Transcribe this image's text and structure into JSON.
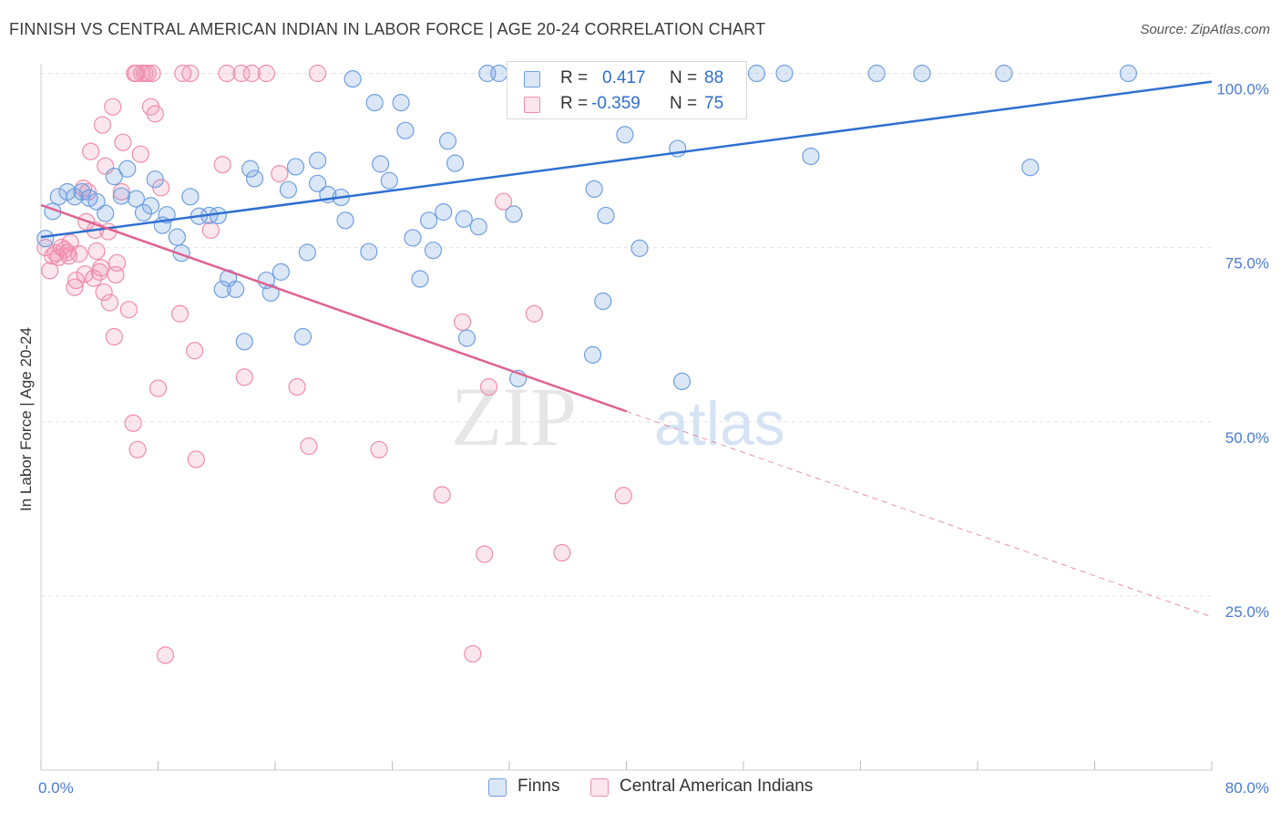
{
  "title": "FINNISH VS CENTRAL AMERICAN INDIAN IN LABOR FORCE | AGE 20-24 CORRELATION CHART",
  "source": "Source: ZipAtlas.com",
  "watermark": {
    "part1": "ZIP",
    "part2": "atlas"
  },
  "colors": {
    "finns": "#6f9fe0",
    "finns_fill": "rgba(111,159,224,0.25)",
    "finns_line": "#2f6fd0",
    "cai": "#f08cab",
    "cai_fill": "rgba(240,140,171,0.22)",
    "cai_line": "#e0628f",
    "grid": "#e3e3e3",
    "axis_text": "#4a7bd1"
  },
  "legend": {
    "finns": {
      "r_label": "R =",
      "r_value": "0.417",
      "n_label": "N =",
      "n_value": "88"
    },
    "cai": {
      "r_label": "R =",
      "r_value": "-0.359",
      "n_label": "N =",
      "n_value": "75"
    }
  },
  "chart_data": {
    "type": "scatter",
    "title": "FINNISH VS CENTRAL AMERICAN INDIAN IN LABOR FORCE | AGE 20-24 CORRELATION CHART",
    "xlabel": "",
    "ylabel": "In Labor Force | Age 20-24",
    "xlim": [
      0,
      80
    ],
    "ylim": [
      0,
      105
    ],
    "x_tick_labels": [
      "0.0%",
      "80.0%"
    ],
    "y_ticks": [
      25,
      50,
      75,
      100
    ],
    "y_tick_labels": [
      "25.0%",
      "50.0%",
      "75.0%",
      "100.0%"
    ],
    "grid": true,
    "legend_position": "bottom",
    "series": [
      {
        "name": "Finns",
        "trend": {
          "x0": 0,
          "y0": 76.5,
          "x1": 80,
          "y1": 98.8
        },
        "points": [
          [
            0.3,
            76.3
          ],
          [
            0.8,
            80.2
          ],
          [
            1.2,
            82.3
          ],
          [
            1.8,
            83.0
          ],
          [
            2.3,
            82.3
          ],
          [
            2.8,
            83.0
          ],
          [
            3.3,
            82.1
          ],
          [
            3.8,
            81.6
          ],
          [
            4.4,
            79.9
          ],
          [
            5.0,
            85.2
          ],
          [
            5.5,
            82.4
          ],
          [
            5.9,
            86.3
          ],
          [
            6.5,
            82.0
          ],
          [
            7.0,
            80.0
          ],
          [
            7.5,
            81.0
          ],
          [
            7.8,
            84.8
          ],
          [
            8.3,
            78.2
          ],
          [
            8.6,
            79.7
          ],
          [
            9.3,
            76.5
          ],
          [
            9.6,
            74.2
          ],
          [
            10.2,
            82.3
          ],
          [
            10.8,
            79.5
          ],
          [
            11.5,
            79.6
          ],
          [
            12.1,
            79.6
          ],
          [
            12.4,
            69.0
          ],
          [
            12.8,
            70.6
          ],
          [
            13.3,
            69.0
          ],
          [
            13.9,
            61.5
          ],
          [
            14.3,
            86.3
          ],
          [
            14.6,
            84.9
          ],
          [
            15.4,
            70.3
          ],
          [
            15.7,
            68.5
          ],
          [
            16.4,
            71.5
          ],
          [
            16.9,
            83.3
          ],
          [
            17.4,
            86.6
          ],
          [
            17.9,
            62.2
          ],
          [
            18.2,
            74.3
          ],
          [
            18.9,
            87.5
          ],
          [
            18.9,
            84.2
          ],
          [
            19.6,
            82.6
          ],
          [
            20.5,
            82.2
          ],
          [
            20.8,
            78.9
          ],
          [
            21.3,
            99.2
          ],
          [
            22.4,
            74.4
          ],
          [
            22.8,
            95.8
          ],
          [
            23.2,
            87.0
          ],
          [
            23.8,
            84.6
          ],
          [
            24.6,
            95.8
          ],
          [
            24.9,
            91.8
          ],
          [
            25.4,
            76.4
          ],
          [
            25.9,
            70.5
          ],
          [
            26.5,
            78.9
          ],
          [
            26.8,
            74.6
          ],
          [
            27.5,
            80.1
          ],
          [
            27.8,
            90.3
          ],
          [
            28.3,
            87.1
          ],
          [
            28.9,
            79.1
          ],
          [
            29.1,
            62.0
          ],
          [
            29.9,
            78.0
          ],
          [
            30.5,
            100
          ],
          [
            31.3,
            100
          ],
          [
            32.3,
            79.8
          ],
          [
            32.6,
            56.2
          ],
          [
            33.5,
            100
          ],
          [
            34.9,
            100
          ],
          [
            35.6,
            100
          ],
          [
            37.5,
            100
          ],
          [
            37.7,
            59.6
          ],
          [
            37.8,
            83.4
          ],
          [
            38.4,
            67.3
          ],
          [
            38.6,
            79.6
          ],
          [
            39.5,
            100
          ],
          [
            39.9,
            91.2
          ],
          [
            40.5,
            100
          ],
          [
            40.9,
            74.9
          ],
          [
            41.9,
            100
          ],
          [
            43.5,
            89.2
          ],
          [
            43.8,
            55.8
          ],
          [
            44.5,
            100
          ],
          [
            48.9,
            100
          ],
          [
            50.8,
            100
          ],
          [
            52.6,
            88.1
          ],
          [
            57.1,
            100
          ],
          [
            60.2,
            100
          ],
          [
            65.8,
            100
          ],
          [
            67.6,
            86.5
          ],
          [
            74.3,
            100
          ]
        ]
      },
      {
        "name": "Central American Indians",
        "trend": {
          "x0": 0,
          "y0": 81.1,
          "x1": 40,
          "y1": 51.5,
          "dash_x1": 80,
          "dash_y1": 22.0
        },
        "points": [
          [
            0.3,
            75.0
          ],
          [
            0.6,
            71.7
          ],
          [
            0.8,
            73.8
          ],
          [
            1.0,
            74.2
          ],
          [
            1.2,
            73.6
          ],
          [
            1.4,
            75.0
          ],
          [
            1.6,
            74.7
          ],
          [
            1.8,
            74.3
          ],
          [
            1.9,
            73.8
          ],
          [
            2.0,
            75.7
          ],
          [
            2.3,
            69.3
          ],
          [
            2.4,
            70.3
          ],
          [
            2.6,
            74.1
          ],
          [
            2.9,
            83.5
          ],
          [
            3.0,
            71.2
          ],
          [
            3.1,
            78.7
          ],
          [
            3.2,
            83.0
          ],
          [
            3.4,
            88.8
          ],
          [
            3.6,
            70.6
          ],
          [
            3.7,
            77.5
          ],
          [
            3.8,
            74.5
          ],
          [
            4.0,
            71.5
          ],
          [
            4.1,
            72.1
          ],
          [
            4.2,
            92.6
          ],
          [
            4.3,
            68.6
          ],
          [
            4.4,
            86.7
          ],
          [
            4.6,
            77.3
          ],
          [
            4.7,
            67.1
          ],
          [
            4.9,
            95.2
          ],
          [
            5.0,
            62.2
          ],
          [
            5.1,
            71.1
          ],
          [
            5.2,
            72.8
          ],
          [
            5.5,
            83.0
          ],
          [
            5.6,
            90.1
          ],
          [
            6.0,
            66.1
          ],
          [
            6.3,
            49.8
          ],
          [
            6.4,
            100
          ],
          [
            6.5,
            100
          ],
          [
            6.6,
            46.0
          ],
          [
            6.8,
            88.4
          ],
          [
            6.9,
            100
          ],
          [
            7.1,
            100
          ],
          [
            7.3,
            100
          ],
          [
            7.5,
            95.2
          ],
          [
            7.6,
            100
          ],
          [
            7.8,
            94.2
          ],
          [
            8.0,
            54.8
          ],
          [
            8.2,
            83.6
          ],
          [
            8.5,
            16.5
          ],
          [
            9.5,
            65.5
          ],
          [
            9.7,
            100
          ],
          [
            10.2,
            100
          ],
          [
            10.5,
            60.2
          ],
          [
            10.6,
            44.6
          ],
          [
            11.6,
            77.5
          ],
          [
            12.4,
            86.9
          ],
          [
            12.7,
            100
          ],
          [
            13.7,
            100
          ],
          [
            13.9,
            56.4
          ],
          [
            14.4,
            100
          ],
          [
            15.4,
            100
          ],
          [
            16.3,
            85.6
          ],
          [
            17.5,
            55.0
          ],
          [
            18.3,
            46.5
          ],
          [
            18.9,
            100
          ],
          [
            23.1,
            46.0
          ],
          [
            27.4,
            39.5
          ],
          [
            28.8,
            64.3
          ],
          [
            29.5,
            16.7
          ],
          [
            30.3,
            31.0
          ],
          [
            30.6,
            55.0
          ],
          [
            31.6,
            81.6
          ],
          [
            33.7,
            65.5
          ],
          [
            35.6,
            31.2
          ],
          [
            39.8,
            39.4
          ]
        ]
      }
    ]
  }
}
